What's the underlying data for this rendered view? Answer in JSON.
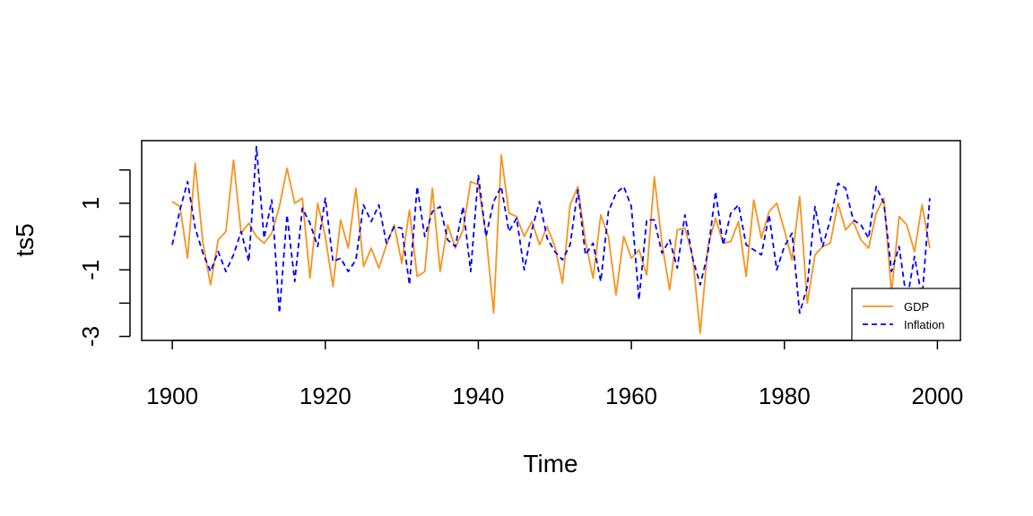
{
  "chart_data": {
    "type": "line",
    "xlabel": "Time",
    "ylabel": "ts5",
    "xlim": [
      1896,
      2003
    ],
    "ylim": [
      -3.12,
      2.88
    ],
    "xticks": [
      1900,
      1920,
      1940,
      1960,
      1980,
      2000
    ],
    "yticks": [
      -3,
      -1,
      1
    ],
    "yticks_minor": [
      -2,
      0,
      2
    ],
    "legend_position": "bottom-right",
    "x": [
      1900,
      1901,
      1902,
      1903,
      1904,
      1905,
      1906,
      1907,
      1908,
      1909,
      1910,
      1911,
      1912,
      1913,
      1914,
      1915,
      1916,
      1917,
      1918,
      1919,
      1920,
      1921,
      1922,
      1923,
      1924,
      1925,
      1926,
      1927,
      1928,
      1929,
      1930,
      1931,
      1932,
      1933,
      1934,
      1935,
      1936,
      1937,
      1938,
      1939,
      1940,
      1941,
      1942,
      1943,
      1944,
      1945,
      1946,
      1947,
      1948,
      1949,
      1950,
      1951,
      1952,
      1953,
      1954,
      1955,
      1956,
      1957,
      1958,
      1959,
      1960,
      1961,
      1962,
      1963,
      1964,
      1965,
      1966,
      1967,
      1968,
      1969,
      1970,
      1971,
      1972,
      1973,
      1974,
      1975,
      1976,
      1977,
      1978,
      1979,
      1980,
      1981,
      1982,
      1983,
      1984,
      1985,
      1986,
      1987,
      1988,
      1989,
      1990,
      1991,
      1992,
      1993,
      1994,
      1995,
      1996,
      1997,
      1998,
      1999
    ],
    "series": [
      {
        "name": "GDP",
        "color": "#F7931E",
        "style": "solid",
        "values": [
          1.05,
          0.9,
          -0.65,
          2.2,
          -0.2,
          -1.45,
          -0.1,
          0.15,
          2.3,
          0.1,
          0.4,
          0.0,
          -0.2,
          0.1,
          0.9,
          2.05,
          1.0,
          1.15,
          -1.25,
          1.0,
          0.0,
          -1.5,
          0.5,
          -0.35,
          1.45,
          -0.9,
          -0.35,
          -0.95,
          -0.25,
          0.35,
          -0.8,
          0.8,
          -1.2,
          -1.05,
          1.45,
          -1.05,
          0.35,
          -0.35,
          0.2,
          1.65,
          1.55,
          0.05,
          -2.3,
          2.45,
          0.7,
          0.6,
          0.0,
          0.45,
          -0.25,
          0.3,
          -0.3,
          -1.4,
          0.95,
          1.5,
          -0.15,
          -1.25,
          0.65,
          0.0,
          -1.75,
          0.0,
          -0.65,
          -0.4,
          -1.15,
          1.8,
          -0.2,
          -1.6,
          0.2,
          0.25,
          -0.6,
          -2.9,
          -0.3,
          0.55,
          -0.2,
          -0.15,
          0.45,
          -1.2,
          1.1,
          -0.05,
          0.75,
          1.0,
          0.2,
          -0.7,
          1.2,
          -2.0,
          -0.55,
          -0.3,
          -0.2,
          1.0,
          0.2,
          0.45,
          -0.1,
          -0.35,
          0.7,
          1.15,
          -1.7,
          0.6,
          0.35,
          -0.45,
          0.95,
          -0.35
        ]
      },
      {
        "name": "Inflation",
        "color": "#0000FF",
        "style": "dashed",
        "values": [
          -0.25,
          0.8,
          1.65,
          0.25,
          -0.5,
          -1.05,
          -0.45,
          -1.05,
          -0.55,
          0.15,
          -0.75,
          2.7,
          -0.05,
          1.1,
          -2.3,
          0.65,
          -1.35,
          0.85,
          0.4,
          -0.3,
          1.15,
          -0.75,
          -0.65,
          -1.05,
          -0.7,
          0.95,
          0.45,
          0.95,
          -0.2,
          0.3,
          0.25,
          -1.45,
          1.5,
          0.0,
          0.75,
          0.9,
          -0.1,
          -0.3,
          0.9,
          -1.05,
          1.85,
          0.0,
          1.05,
          1.5,
          0.15,
          0.55,
          -1.0,
          0.2,
          1.05,
          -0.05,
          -0.45,
          -0.7,
          -0.25,
          1.4,
          -0.55,
          -0.2,
          -1.35,
          0.75,
          1.3,
          1.5,
          0.9,
          -1.9,
          0.5,
          0.5,
          -0.5,
          -0.1,
          -0.95,
          0.65,
          -0.65,
          -1.45,
          -0.5,
          1.35,
          -0.25,
          0.7,
          0.95,
          -0.25,
          -0.4,
          -0.55,
          0.65,
          -1.0,
          -0.3,
          0.1,
          -2.3,
          -1.5,
          0.9,
          -0.3,
          0.5,
          1.6,
          1.45,
          0.5,
          0.35,
          -0.05,
          1.5,
          1.0,
          -1.05,
          -0.3,
          -1.95,
          -0.6,
          -1.85,
          1.15
        ]
      }
    ]
  }
}
